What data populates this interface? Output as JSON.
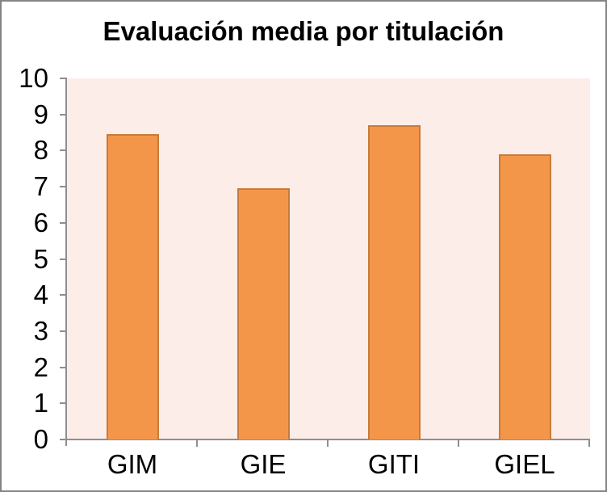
{
  "window": {
    "background": "#FFFFFF",
    "border_color": "#848484"
  },
  "chart_data": {
    "type": "bar",
    "title": "Evaluación media por titulación",
    "categories": [
      "GIM",
      "GIE",
      "GITI",
      "GIEL"
    ],
    "values": [
      8.45,
      6.95,
      8.7,
      7.9
    ],
    "xlabel": "",
    "ylabel": "",
    "ylim": [
      0,
      10
    ],
    "ytick_step": 1,
    "ytick_labels": [
      "0",
      "1",
      "2",
      "3",
      "4",
      "5",
      "6",
      "7",
      "8",
      "9",
      "10"
    ],
    "grid": false,
    "legend": false,
    "colors": {
      "bar_fill": "#F4964A",
      "bar_border": "#C67B3B",
      "plot_background": "#FCEDE9",
      "axis": "#8E8E8E",
      "text": "#000000",
      "title_text": "#000000"
    }
  }
}
